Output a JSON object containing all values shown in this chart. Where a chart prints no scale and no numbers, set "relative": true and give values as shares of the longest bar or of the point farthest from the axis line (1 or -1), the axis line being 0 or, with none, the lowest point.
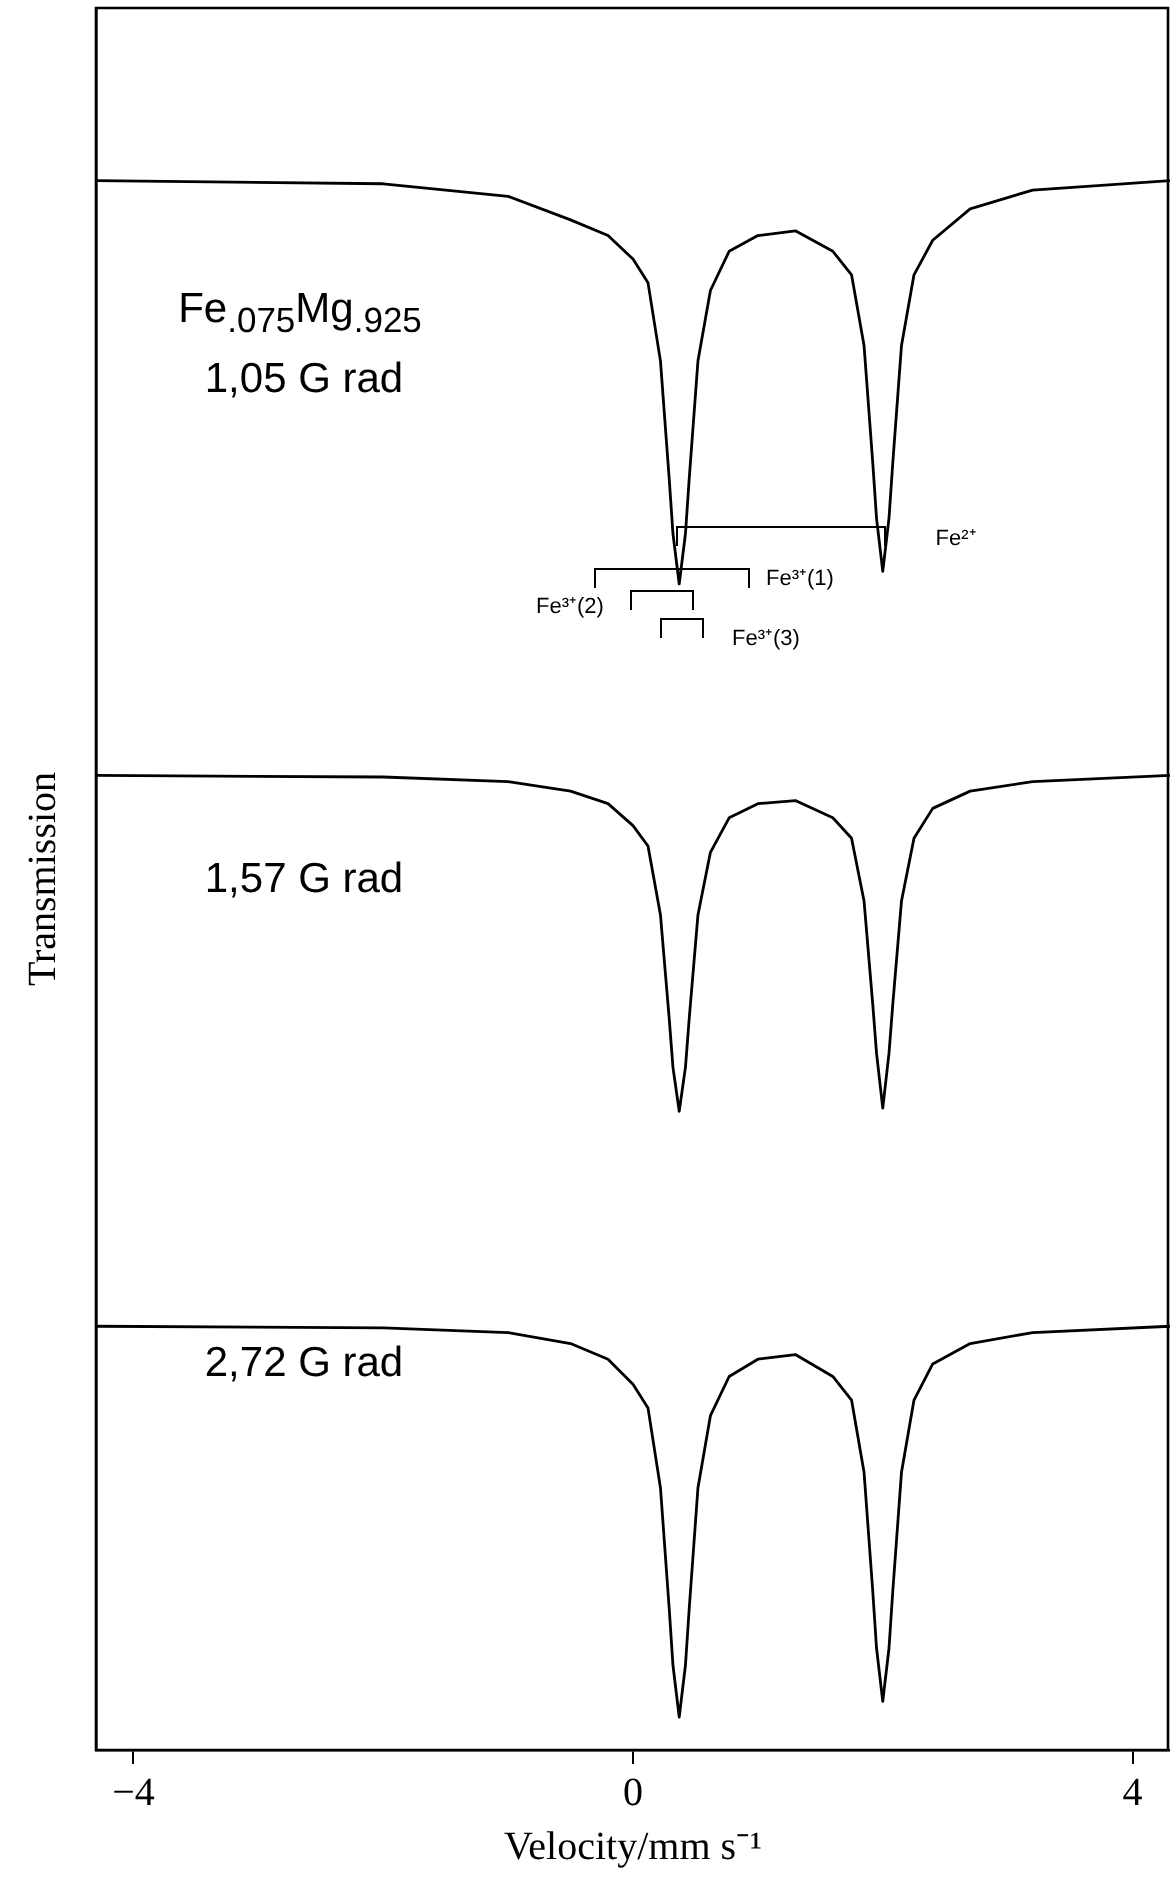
{
  "chart_data": {
    "type": "line",
    "relative": true,
    "xlabel": "Velocity/mm s⁻¹",
    "ylabel": "Transmission",
    "xlim": [
      -4.3,
      4.3
    ],
    "xticks": [
      {
        "value": -4,
        "label": "−4"
      },
      0,
      4
    ],
    "grid": false,
    "legend": false,
    "marker": "none",
    "line_style": "solid",
    "x": [
      -4.3,
      -2,
      -1,
      -0.5,
      -0.2,
      0,
      0.12,
      0.22,
      0.29,
      0.32,
      0.37,
      0.42,
      0.45,
      0.52,
      0.62,
      0.77,
      1.0,
      1.3,
      1.6,
      1.75,
      1.85,
      1.92,
      1.95,
      2.0,
      2.05,
      2.08,
      2.15,
      2.25,
      2.4,
      2.7,
      3.2,
      4.3
    ],
    "series": [
      {
        "color": "#000000",
        "values": [
          1,
          0.998,
          0.99,
          0.975,
          0.965,
          0.95,
          0.935,
          0.885,
          0.81,
          0.775,
          0.743,
          0.775,
          0.81,
          0.885,
          0.93,
          0.955,
          0.965,
          0.968,
          0.955,
          0.94,
          0.895,
          0.82,
          0.785,
          0.751,
          0.785,
          0.82,
          0.895,
          0.94,
          0.962,
          0.982,
          0.994,
          1
        ]
      },
      {
        "color": "#000000",
        "values": [
          0.621,
          0.62,
          0.617,
          0.611,
          0.603,
          0.589,
          0.576,
          0.532,
          0.466,
          0.435,
          0.407,
          0.435,
          0.466,
          0.532,
          0.572,
          0.594,
          0.603,
          0.605,
          0.594,
          0.581,
          0.541,
          0.475,
          0.444,
          0.409,
          0.444,
          0.475,
          0.541,
          0.581,
          0.6,
          0.611,
          0.617,
          0.621
        ]
      },
      {
        "color": "#000000",
        "values": [
          0.27,
          0.269,
          0.266,
          0.259,
          0.249,
          0.233,
          0.218,
          0.167,
          0.09,
          0.054,
          0.021,
          0.054,
          0.09,
          0.167,
          0.213,
          0.238,
          0.249,
          0.252,
          0.238,
          0.223,
          0.177,
          0.101,
          0.065,
          0.031,
          0.065,
          0.101,
          0.177,
          0.223,
          0.246,
          0.259,
          0.266,
          0.27
        ]
      }
    ],
    "annotations": [
      "Fe$_{.075}$Mg$_{.925}$",
      "1,05 G rad",
      "1,57 G rad",
      "2,72 G rad",
      "Fe²⁺",
      "Fe³⁺(1)",
      "Fe³⁺(2)",
      "Fe³⁺(3)"
    ]
  }
}
